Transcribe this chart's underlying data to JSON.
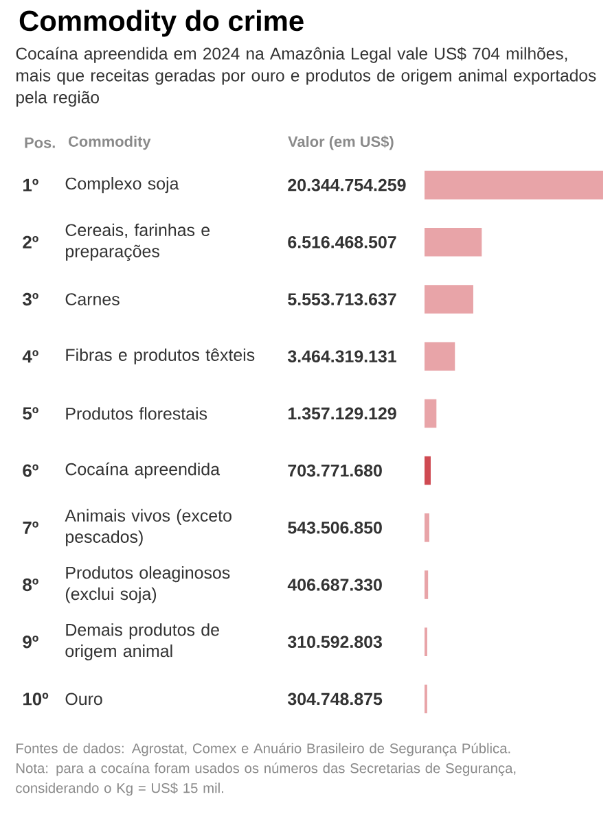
{
  "chart_data": {
    "type": "bar",
    "orientation": "horizontal",
    "title": "Commodity do crime",
    "subtitle": "Cocaína apreendida em 2024 na Amazônia Legal vale US$ 704 milhões, mais que receitas geradas por ouro e produtos de origem animal exportados pela região",
    "ylabel": "Commodity",
    "xlabel": "Valor (em US$)",
    "categories": [
      "Complexo soja",
      "Cereais, farinhas e preparações",
      "Carnes",
      "Fibras e produtos têxteis",
      "Produtos florestais",
      "Cocaína apreendida",
      "Animais vivos (exceto pescados)",
      "Produtos oleaginosos (exclui soja)",
      "Demais produtos de origem animal",
      "Ouro"
    ],
    "values": [
      20344754259,
      6516468507,
      5553713637,
      3464319131,
      1357129129,
      703771680,
      543506850,
      406687330,
      310592803,
      304748875
    ],
    "value_labels": [
      "20.344.754.259",
      "6.516.468.507",
      "5.553.713.637",
      "3.464.319.131",
      "1.357.129.129",
      "703.771.680",
      "543.506.850",
      "406.687.330",
      "310.592.803",
      "304.748.875"
    ],
    "colors": [
      "#e8a4a8",
      "#e8a4a8",
      "#e8a4a8",
      "#e8a4a8",
      "#e8a4a8",
      "#cf4a52",
      "#e8a4a8",
      "#e8a4a8",
      "#e8a4a8",
      "#e8a4a8"
    ],
    "annotations": [
      "Pos.",
      "1º",
      "2º",
      "3º",
      "4º",
      "5º",
      "6º",
      "7º",
      "8º",
      "9º",
      "10º",
      "Fontes de dados: Agrostat, Comex e Anuário Brasileiro de Segurança Pública.",
      "Nota: para a cocaína foram usados os números das Secretarias de Segurança, considerando o Kg = US$ 15 mil."
    ]
  }
}
